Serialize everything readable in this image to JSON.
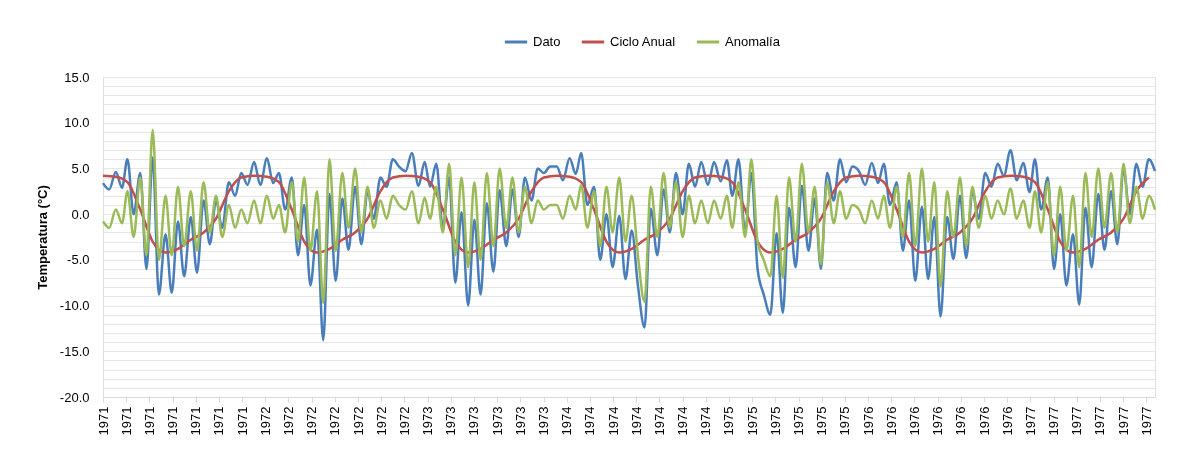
{
  "chart_data": {
    "type": "line",
    "ylabel": "Temperatura (°C)",
    "grid": "y",
    "legend": "top",
    "x": [
      "1971-01-01",
      "1971-01-16",
      "1971-02-01",
      "1971-02-16",
      "1971-03-01",
      "1971-03-16",
      "1971-04-01",
      "1971-04-16",
      "1971-05-01",
      "1971-05-16",
      "1971-06-01",
      "1971-06-16",
      "1971-07-01",
      "1971-07-16",
      "1971-08-01",
      "1971-08-16",
      "1971-09-01",
      "1971-09-16",
      "1971-10-01",
      "1971-10-16",
      "1971-11-01",
      "1971-11-16",
      "1971-12-01",
      "1971-12-16",
      "1972-01-01",
      "1972-01-16",
      "1972-02-01",
      "1972-02-16",
      "1972-03-01",
      "1972-03-16",
      "1972-04-01",
      "1972-04-16",
      "1972-05-01",
      "1972-05-16",
      "1972-06-01",
      "1972-06-16",
      "1972-07-01",
      "1972-07-16",
      "1972-08-01",
      "1972-08-16",
      "1972-09-01",
      "1972-09-16",
      "1972-10-01",
      "1972-10-16",
      "1972-11-01",
      "1972-11-16",
      "1972-12-01",
      "1972-12-16",
      "1973-01-01",
      "1973-01-16",
      "1973-02-01",
      "1973-02-16",
      "1973-03-01",
      "1973-03-16",
      "1973-04-01",
      "1973-04-16",
      "1973-05-01",
      "1973-05-16",
      "1973-06-01",
      "1973-06-16",
      "1973-07-01",
      "1973-07-16",
      "1973-08-01",
      "1973-08-16",
      "1973-09-01",
      "1973-09-16",
      "1973-10-01",
      "1973-10-16",
      "1973-11-01",
      "1973-11-16",
      "1973-12-01",
      "1973-12-16",
      "1974-01-01",
      "1974-01-16",
      "1974-02-01",
      "1974-02-16",
      "1974-03-01",
      "1974-03-16",
      "1974-04-01",
      "1974-04-16",
      "1974-05-01",
      "1974-05-16",
      "1974-06-01",
      "1974-06-16",
      "1974-07-01",
      "1974-07-16",
      "1974-08-01",
      "1974-08-16",
      "1974-09-01",
      "1974-09-16",
      "1974-10-01",
      "1974-10-16",
      "1974-11-01",
      "1974-11-16",
      "1974-12-01",
      "1974-12-16",
      "1975-01-01",
      "1975-01-16",
      "1975-02-01",
      "1975-02-16",
      "1975-03-01",
      "1975-03-16",
      "1975-04-01",
      "1975-04-16",
      "1975-05-01",
      "1975-05-16",
      "1975-06-01",
      "1975-06-16",
      "1975-07-01",
      "1975-07-16",
      "1975-08-01",
      "1975-08-16",
      "1975-09-01",
      "1975-09-16",
      "1975-10-01",
      "1975-10-16",
      "1975-11-01",
      "1975-11-16",
      "1975-12-01",
      "1975-12-16",
      "1976-01-01",
      "1976-01-16",
      "1976-02-01",
      "1976-02-16",
      "1976-03-01",
      "1976-03-16",
      "1976-04-01",
      "1976-04-16",
      "1976-05-01",
      "1976-05-16",
      "1976-06-01",
      "1976-06-16",
      "1976-07-01",
      "1976-07-16",
      "1976-08-01",
      "1976-08-16",
      "1976-09-01",
      "1976-09-16",
      "1976-10-01",
      "1976-10-16",
      "1976-11-01",
      "1976-11-16",
      "1976-12-01",
      "1976-12-16",
      "1977-01-01",
      "1977-01-16",
      "1977-02-01",
      "1977-02-16",
      "1977-03-01",
      "1977-03-16",
      "1977-04-01",
      "1977-04-16",
      "1977-05-01",
      "1977-05-16",
      "1977-06-01",
      "1977-06-16",
      "1977-07-01",
      "1977-07-16",
      "1977-08-01",
      "1977-08-16",
      "1977-09-01",
      "1977-09-16",
      "1977-10-01",
      "1977-10-16",
      "1977-11-01",
      "1977-11-16",
      "1977-12-01",
      "1977-12-16"
    ],
    "xlim": [
      "1971-01-01",
      "1977-12-16"
    ],
    "xticks": [
      {
        "value": "1971-01-01",
        "label": "1971"
      },
      {
        "value": "1971-02-26",
        "label": "1971"
      },
      {
        "value": "1971-04-23",
        "label": "1971"
      },
      {
        "value": "1971-06-18",
        "label": "1971"
      },
      {
        "value": "1971-08-13",
        "label": "1971"
      },
      {
        "value": "1971-10-08",
        "label": "1971"
      },
      {
        "value": "1971-12-03",
        "label": "1971"
      },
      {
        "value": "1972-01-28",
        "label": "1972"
      },
      {
        "value": "1972-03-24",
        "label": "1972"
      },
      {
        "value": "1972-05-19",
        "label": "1972"
      },
      {
        "value": "1972-07-14",
        "label": "1972"
      },
      {
        "value": "1972-09-08",
        "label": "1972"
      },
      {
        "value": "1972-11-03",
        "label": "1972"
      },
      {
        "value": "1972-12-29",
        "label": "1972"
      },
      {
        "value": "1973-02-23",
        "label": "1973"
      },
      {
        "value": "1973-04-20",
        "label": "1973"
      },
      {
        "value": "1973-06-15",
        "label": "1973"
      },
      {
        "value": "1973-08-10",
        "label": "1973"
      },
      {
        "value": "1973-10-05",
        "label": "1973"
      },
      {
        "value": "1973-11-30",
        "label": "1973"
      },
      {
        "value": "1974-01-25",
        "label": "1974"
      },
      {
        "value": "1974-03-22",
        "label": "1974"
      },
      {
        "value": "1974-05-17",
        "label": "1974"
      },
      {
        "value": "1974-07-12",
        "label": "1974"
      },
      {
        "value": "1974-09-06",
        "label": "1974"
      },
      {
        "value": "1974-11-01",
        "label": "1974"
      },
      {
        "value": "1974-12-27",
        "label": "1974"
      },
      {
        "value": "1975-02-21",
        "label": "1975"
      },
      {
        "value": "1975-04-18",
        "label": "1975"
      },
      {
        "value": "1975-06-13",
        "label": "1975"
      },
      {
        "value": "1975-08-08",
        "label": "1975"
      },
      {
        "value": "1975-10-03",
        "label": "1975"
      },
      {
        "value": "1975-11-28",
        "label": "1975"
      },
      {
        "value": "1976-01-23",
        "label": "1976"
      },
      {
        "value": "1976-03-19",
        "label": "1976"
      },
      {
        "value": "1976-05-14",
        "label": "1976"
      },
      {
        "value": "1976-07-09",
        "label": "1976"
      },
      {
        "value": "1976-09-03",
        "label": "1976"
      },
      {
        "value": "1976-10-29",
        "label": "1976"
      },
      {
        "value": "1976-12-24",
        "label": "1976"
      },
      {
        "value": "1977-02-18",
        "label": "1977"
      },
      {
        "value": "1977-04-15",
        "label": "1977"
      },
      {
        "value": "1977-06-10",
        "label": "1977"
      },
      {
        "value": "1977-08-05",
        "label": "1977"
      },
      {
        "value": "1977-09-30",
        "label": "1977"
      },
      {
        "value": "1977-11-25",
        "label": "1977"
      }
    ],
    "ylim": [
      -20,
      15
    ],
    "yticks": [
      {
        "value": -20,
        "label": "-20.0"
      },
      {
        "value": -19,
        "label": null
      },
      {
        "value": -18,
        "label": null
      },
      {
        "value": -17,
        "label": null
      },
      {
        "value": -16,
        "label": null
      },
      {
        "value": -15,
        "label": "-15.0"
      },
      {
        "value": -14,
        "label": null
      },
      {
        "value": -13,
        "label": null
      },
      {
        "value": -12,
        "label": null
      },
      {
        "value": -11,
        "label": null
      },
      {
        "value": -10,
        "label": "-10.0"
      },
      {
        "value": -9,
        "label": null
      },
      {
        "value": -8,
        "label": null
      },
      {
        "value": -7,
        "label": null
      },
      {
        "value": -6,
        "label": null
      },
      {
        "value": -5,
        "label": "-5.0"
      },
      {
        "value": -4,
        "label": null
      },
      {
        "value": -3,
        "label": null
      },
      {
        "value": -2,
        "label": null
      },
      {
        "value": -1,
        "label": null
      },
      {
        "value": 0,
        "label": "0.0"
      },
      {
        "value": 1,
        "label": null
      },
      {
        "value": 2,
        "label": null
      },
      {
        "value": 3,
        "label": null
      },
      {
        "value": 4,
        "label": null
      },
      {
        "value": 5,
        "label": "5.0"
      },
      {
        "value": 6,
        "label": null
      },
      {
        "value": 7,
        "label": null
      },
      {
        "value": 8,
        "label": null
      },
      {
        "value": 9,
        "label": null
      },
      {
        "value": 10,
        "label": "10.0"
      },
      {
        "value": 11,
        "label": null
      },
      {
        "value": 12,
        "label": null
      },
      {
        "value": 13,
        "label": null
      },
      {
        "value": 14,
        "label": null
      },
      {
        "value": 15,
        "label": "15.0"
      }
    ],
    "series": [
      {
        "name": "Dato",
        "color": "#4a7ebb",
        "values": [
          3.4,
          2.7,
          4.6,
          2.9,
          6.0,
          0.0,
          4.5,
          -6.0,
          6.2,
          -8.8,
          -2.2,
          -8.6,
          -0.8,
          -6.8,
          -0.3,
          -6.4,
          1.5,
          -3.3,
          1.5,
          -1.5,
          3.5,
          2.0,
          4.5,
          3.2,
          5.7,
          3.2,
          6.1,
          3.4,
          4.5,
          0.5,
          4.0,
          -4.5,
          1.0,
          -7.8,
          -1.7,
          -13.8,
          2.2,
          -7.3,
          1.7,
          -3.9,
          3.0,
          -3.3,
          2.5,
          -0.5,
          4.0,
          3.0,
          6.0,
          5.2,
          4.7,
          6.7,
          3.1,
          5.7,
          3.0,
          5.5,
          -1.5,
          4.0,
          -7.5,
          0.2,
          -10.0,
          -0.6,
          -8.8,
          1.2,
          -6.3,
          2.6,
          -3.5,
          2.7,
          -2.5,
          4.0,
          1.5,
          5.0,
          4.5,
          5.2,
          5.2,
          3.7,
          6.1,
          4.4,
          6.7,
          1.0,
          3.0,
          -5.0,
          0.0,
          -5.8,
          -0.2,
          -7.1,
          -1.8,
          -7.8,
          -12.4,
          0.6,
          -4.5,
          2.7,
          -2.0,
          4.5,
          0.0,
          5.5,
          3.0,
          5.7,
          3.2,
          5.7,
          3.6,
          5.9,
          2.0,
          6.0,
          -2.0,
          4.5,
          -6.0,
          -8.8,
          -11.0,
          -2.1,
          -10.8,
          0.7,
          -5.8,
          3.1,
          -4.0,
          1.7,
          -6.0,
          4.5,
          1.5,
          6.0,
          3.5,
          5.2,
          4.7,
          3.2,
          5.6,
          3.4,
          5.5,
          1.0,
          3.5,
          -4.0,
          1.5,
          -7.3,
          0.8,
          -7.1,
          -0.3,
          -11.2,
          -0.3,
          -4.9,
          2.0,
          -4.8,
          2.5,
          -0.5,
          4.5,
          3.0,
          5.5,
          4.2,
          7.0,
          3.7,
          5.6,
          2.4,
          6.0,
          0.5,
          4.0,
          -6.0,
          0.0,
          -7.8,
          -2.2,
          -9.9,
          0.7,
          -5.8,
          2.2,
          -3.9,
          2.5,
          -3.3,
          5.0,
          0.0,
          5.5,
          3.0,
          6.0,
          4.7
        ]
      },
      {
        "name": "Ciclo Anual",
        "color": "#c0504d",
        "x": [
          "1971-01-01",
          "1971-02-01",
          "1971-03-01",
          "1971-04-01",
          "1971-05-01",
          "1971-06-01",
          "1971-07-01",
          "1971-08-01",
          "1971-09-01",
          "1971-10-01",
          "1971-11-01",
          "1971-12-01",
          "1972-01-01",
          "1972-02-01",
          "1972-03-01",
          "1972-04-01",
          "1972-05-01",
          "1972-06-01",
          "1972-07-01",
          "1972-08-01",
          "1972-09-01",
          "1972-10-01",
          "1972-11-01",
          "1972-12-01",
          "1973-01-01",
          "1973-02-01",
          "1973-03-01",
          "1973-04-01",
          "1973-05-01",
          "1973-06-01",
          "1973-07-01",
          "1973-08-01",
          "1973-09-01",
          "1973-10-01",
          "1973-11-01",
          "1973-12-01",
          "1974-01-01",
          "1974-02-01",
          "1974-03-01",
          "1974-04-01",
          "1974-05-01",
          "1974-06-01",
          "1974-07-01",
          "1974-08-01",
          "1974-09-01",
          "1974-10-01",
          "1974-11-01",
          "1974-12-01",
          "1975-01-01",
          "1975-02-01",
          "1975-03-01",
          "1975-04-01",
          "1975-05-01",
          "1975-06-01",
          "1975-07-01",
          "1975-08-01",
          "1975-09-01",
          "1975-10-01",
          "1975-11-01",
          "1975-12-01",
          "1976-01-01",
          "1976-02-01",
          "1976-03-01",
          "1976-04-01",
          "1976-05-01",
          "1976-06-01",
          "1976-07-01",
          "1976-08-01",
          "1976-09-01",
          "1976-10-01",
          "1976-11-01",
          "1976-12-01",
          "1977-01-01",
          "1977-02-01",
          "1977-03-01",
          "1977-04-01",
          "1977-05-01",
          "1977-06-01",
          "1977-07-01",
          "1977-08-01",
          "1977-09-01",
          "1977-10-01",
          "1977-11-01",
          "1977-12-01"
        ],
        "values": [
          4.2,
          4.1,
          3.5,
          0.5,
          -3.0,
          -4.2,
          -3.8,
          -2.8,
          -2.0,
          -0.5,
          2.5,
          4.0,
          4.2,
          4.1,
          3.5,
          0.5,
          -3.0,
          -4.2,
          -3.8,
          -2.8,
          -2.0,
          -0.5,
          2.5,
          4.0,
          4.2,
          4.1,
          3.5,
          0.5,
          -3.0,
          -4.2,
          -3.8,
          -2.8,
          -2.0,
          -0.5,
          2.5,
          4.0,
          4.2,
          4.1,
          3.5,
          0.5,
          -3.0,
          -4.2,
          -3.8,
          -2.8,
          -2.0,
          -0.5,
          2.5,
          4.0,
          4.2,
          4.1,
          3.5,
          0.5,
          -3.0,
          -4.2,
          -3.8,
          -2.8,
          -2.0,
          -0.5,
          2.5,
          4.0,
          4.2,
          4.1,
          3.5,
          0.5,
          -3.0,
          -4.2,
          -3.8,
          -2.8,
          -2.0,
          -0.5,
          2.5,
          4.0,
          4.2,
          4.1,
          3.5,
          0.5,
          -3.0,
          -4.2,
          -3.8,
          -2.8,
          -2.0,
          -0.5,
          2.5,
          4.0
        ]
      },
      {
        "name": "Anomalía",
        "color": "#9bbb59",
        "values": [
          -0.8,
          -1.5,
          0.5,
          -1.0,
          2.5,
          -2.5,
          4.0,
          -4.5,
          9.2,
          -5.0,
          2.0,
          -4.5,
          3.0,
          -3.5,
          2.5,
          -4.0,
          3.5,
          -2.0,
          2.0,
          -2.5,
          1.0,
          -1.5,
          0.5,
          -1.0,
          1.5,
          -1.0,
          2.0,
          -0.5,
          1.0,
          -2.0,
          3.5,
          -3.0,
          4.0,
          -4.0,
          2.5,
          -9.7,
          6.0,
          -4.0,
          4.5,
          -1.5,
          5.0,
          -2.0,
          3.0,
          -1.5,
          1.5,
          -0.5,
          2.0,
          1.0,
          0.5,
          2.5,
          -1.0,
          1.8,
          -0.5,
          3.0,
          -2.0,
          5.5,
          -4.5,
          4.0,
          -5.8,
          3.5,
          -5.0,
          4.5,
          -3.5,
          5.0,
          -1.5,
          4.0,
          -2.0,
          3.0,
          -1.0,
          1.5,
          0.5,
          1.0,
          1.0,
          -0.5,
          2.0,
          0.5,
          3.2,
          -1.5,
          2.5,
          -3.5,
          3.0,
          -2.0,
          4.0,
          -3.0,
          2.0,
          -4.5,
          -9.6,
          3.0,
          -2.5,
          4.5,
          -1.5,
          3.5,
          -2.5,
          2.0,
          -1.0,
          1.5,
          -1.0,
          1.5,
          -0.5,
          2.0,
          -1.5,
          3.5,
          -2.5,
          6.0,
          -3.0,
          -5.0,
          -6.8,
          2.0,
          -7.0,
          4.0,
          -3.0,
          5.5,
          -2.0,
          3.0,
          -5.5,
          3.5,
          -1.0,
          2.5,
          -0.5,
          1.0,
          0.5,
          -1.0,
          1.5,
          -0.5,
          2.0,
          -1.5,
          3.0,
          -2.5,
          4.5,
          -3.5,
          5.0,
          -3.0,
          3.5,
          -7.9,
          2.5,
          -2.5,
          4.0,
          -3.5,
          3.0,
          -1.5,
          2.0,
          -0.5,
          1.5,
          0.0,
          2.8,
          -0.5,
          1.5,
          -1.5,
          2.5,
          -2.0,
          3.5,
          -4.5,
          3.0,
          -4.0,
          2.0,
          -5.8,
          4.5,
          -2.5,
          5.0,
          -1.5,
          4.5,
          -2.0,
          5.5,
          -1.0,
          3.0,
          -0.5,
          2.0,
          0.5
        ]
      }
    ]
  }
}
